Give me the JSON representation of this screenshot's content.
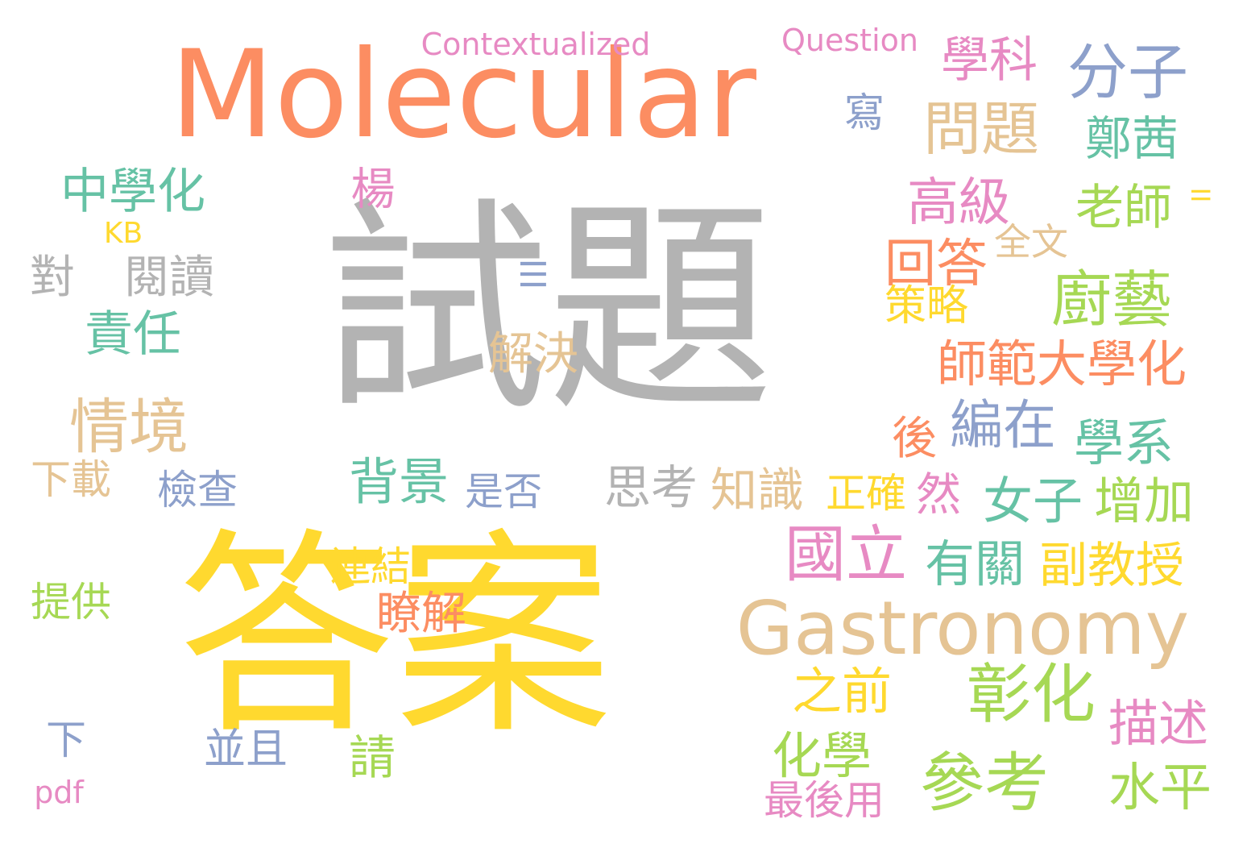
{
  "palette": {
    "gray": "#b3b3b3",
    "orange": "#fc8d62",
    "yellow": "#ffd92f",
    "tan": "#e5c494",
    "blue": "#8da0cb",
    "pink": "#e78ac3",
    "green": "#66c2a5",
    "lime": "#a6d854"
  },
  "words": [
    {
      "text": "Molecular",
      "color": "#fc8d62"
    },
    {
      "text": "試題",
      "color": "#b3b3b3"
    },
    {
      "text": "答案",
      "color": "#ffd92f"
    },
    {
      "text": "Gastronomy",
      "color": "#e5c494"
    },
    {
      "text": "Contextualized",
      "color": "#e78ac3"
    },
    {
      "text": "Question",
      "color": "#e78ac3"
    },
    {
      "text": "學科",
      "color": "#e78ac3"
    },
    {
      "text": "分子",
      "color": "#8da0cb"
    },
    {
      "text": "寫",
      "color": "#8da0cb"
    },
    {
      "text": "問題",
      "color": "#e5c494"
    },
    {
      "text": "鄭茜",
      "color": "#66c2a5"
    },
    {
      "text": "中學化",
      "color": "#66c2a5"
    },
    {
      "text": "楊",
      "color": "#e78ac3"
    },
    {
      "text": "高級",
      "color": "#e78ac3"
    },
    {
      "text": "老師",
      "color": "#a6d854"
    },
    {
      "text": "II",
      "color": "#ffd92f"
    },
    {
      "text": "KB",
      "color": "#ffd92f"
    },
    {
      "text": "全文",
      "color": "#e5c494"
    },
    {
      "text": "回答",
      "color": "#fc8d62"
    },
    {
      "text": "對",
      "color": "#b3b3b3"
    },
    {
      "text": "閱讀",
      "color": "#b3b3b3"
    },
    {
      "text": "III",
      "color": "#8da0cb"
    },
    {
      "text": "廚藝",
      "color": "#a6d854"
    },
    {
      "text": "策略",
      "color": "#ffd92f"
    },
    {
      "text": "責任",
      "color": "#66c2a5"
    },
    {
      "text": "解決",
      "color": "#e5c494"
    },
    {
      "text": "師範大學化",
      "color": "#fc8d62"
    },
    {
      "text": "情境",
      "color": "#e5c494"
    },
    {
      "text": "編在",
      "color": "#8da0cb"
    },
    {
      "text": "後",
      "color": "#fc8d62"
    },
    {
      "text": "學系",
      "color": "#66c2a5"
    },
    {
      "text": "下載",
      "color": "#e5c494"
    },
    {
      "text": "檢查",
      "color": "#8da0cb"
    },
    {
      "text": "背景",
      "color": "#66c2a5"
    },
    {
      "text": "是否",
      "color": "#8da0cb"
    },
    {
      "text": "思考",
      "color": "#b3b3b3"
    },
    {
      "text": "知識",
      "color": "#e5c494"
    },
    {
      "text": "正確",
      "color": "#ffd92f"
    },
    {
      "text": "然",
      "color": "#e78ac3"
    },
    {
      "text": "女子",
      "color": "#66c2a5"
    },
    {
      "text": "增加",
      "color": "#a6d854"
    },
    {
      "text": "國立",
      "color": "#e78ac3"
    },
    {
      "text": "有關",
      "color": "#66c2a5"
    },
    {
      "text": "副教授",
      "color": "#ffd92f"
    },
    {
      "text": "連結",
      "color": "#ffd92f"
    },
    {
      "text": "提供",
      "color": "#a6d854"
    },
    {
      "text": "瞭解",
      "color": "#fc8d62"
    },
    {
      "text": "之前",
      "color": "#ffd92f"
    },
    {
      "text": "彰化",
      "color": "#a6d854"
    },
    {
      "text": "描述",
      "color": "#e78ac3"
    },
    {
      "text": "下",
      "color": "#8da0cb"
    },
    {
      "text": "並且",
      "color": "#8da0cb"
    },
    {
      "text": "請",
      "color": "#a6d854"
    },
    {
      "text": "化學",
      "color": "#a6d854"
    },
    {
      "text": "參考",
      "color": "#a6d854"
    },
    {
      "text": "水平",
      "color": "#a6d854"
    },
    {
      "text": "pdf",
      "color": "#e78ac3"
    },
    {
      "text": "最後用",
      "color": "#e78ac3"
    }
  ]
}
